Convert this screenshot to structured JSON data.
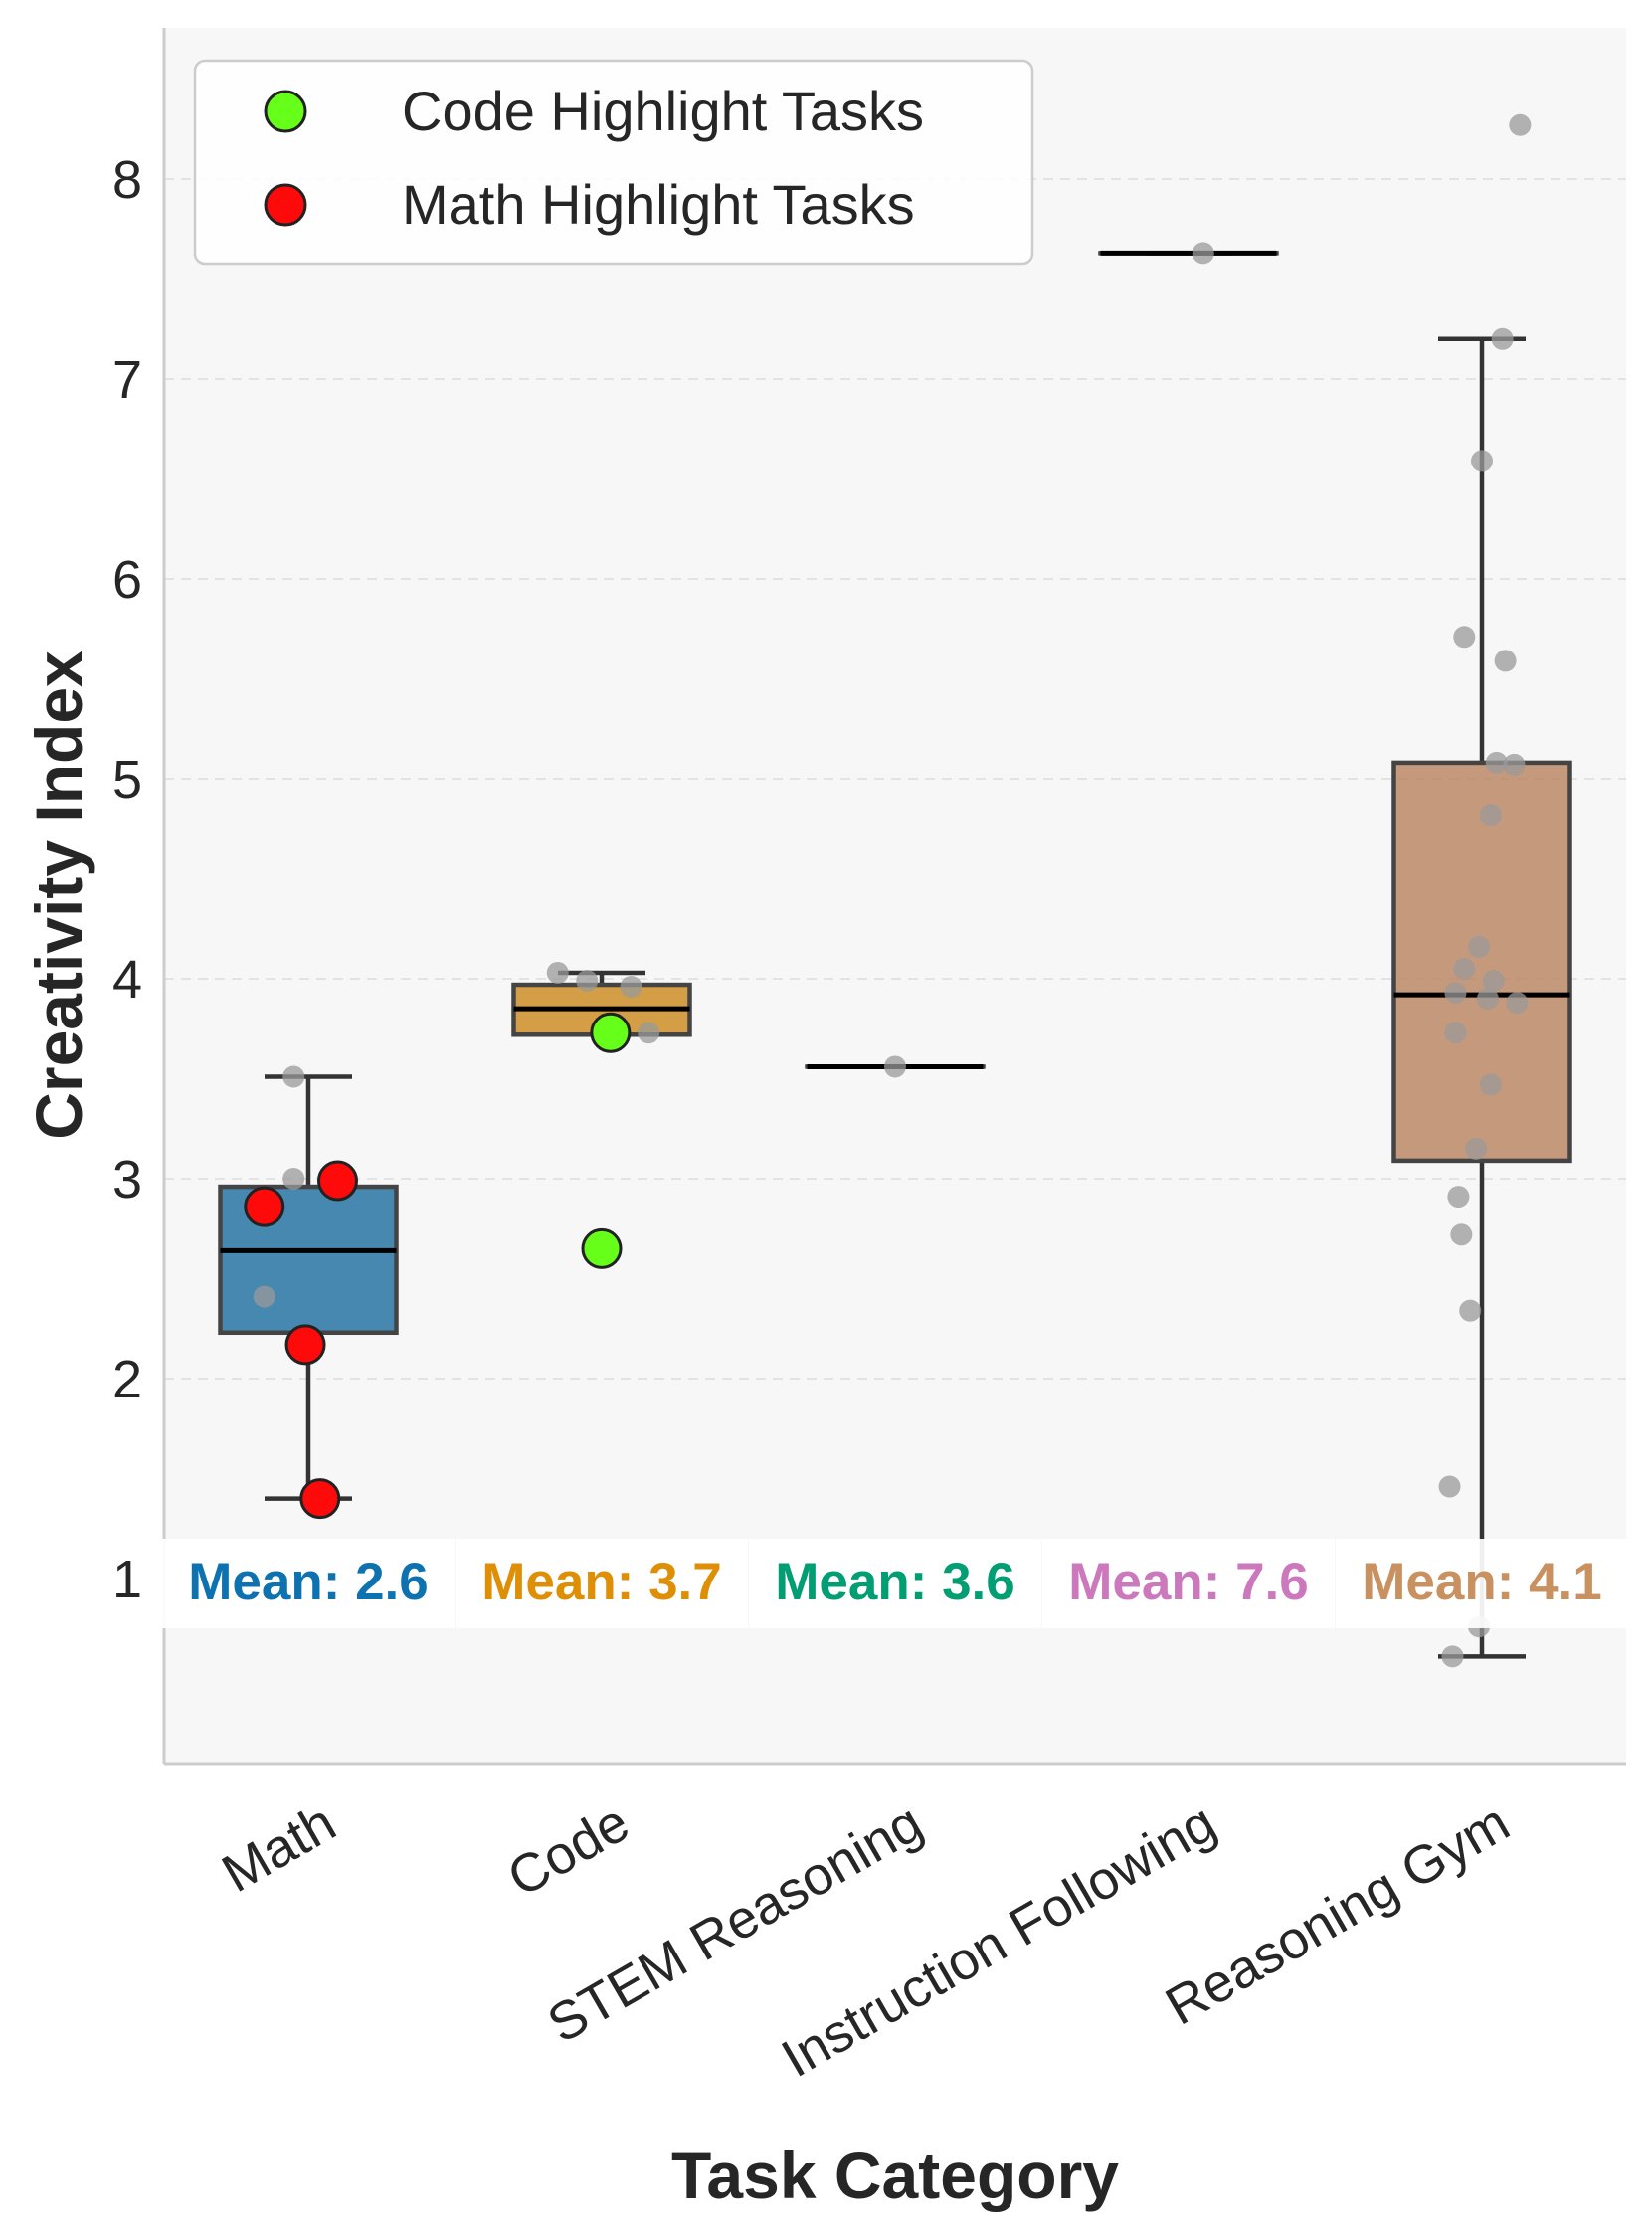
{
  "chart_data": {
    "type": "box",
    "title": "",
    "xlabel": "Task Category",
    "ylabel": "Creativity Index",
    "ylim": [
      0.2,
      8.75
    ],
    "yticks": [
      1,
      2,
      3,
      4,
      5,
      6,
      7,
      8
    ],
    "grid": "y-dashed",
    "legend_position": "top-left",
    "categories": [
      "Math",
      "Code",
      "STEM Reasoning",
      "Instruction Following",
      "Reasoning Gym"
    ],
    "colors": [
      "#1f6f9f",
      "#cc8a1e",
      "#1a9e77",
      "#d17fc0",
      "#b98460"
    ],
    "mean_colors": [
      "#0f72b0",
      "#de8f05",
      "#029e73",
      "#cc78bc",
      "#c8915f"
    ],
    "boxes": [
      {
        "category": "Math",
        "q1": 2.23,
        "median": 2.64,
        "q3": 2.96,
        "whisker_low": 1.4,
        "whisker_high": 3.51
      },
      {
        "category": "Code",
        "q1": 3.72,
        "median": 3.85,
        "q3": 3.97,
        "whisker_low": 3.72,
        "whisker_high": 4.03
      },
      {
        "category": "STEM Reasoning",
        "q1": 3.56,
        "median": 3.56,
        "q3": 3.56,
        "whisker_low": 3.56,
        "whisker_high": 3.56
      },
      {
        "category": "Instruction Following",
        "q1": 7.63,
        "median": 7.63,
        "q3": 7.63,
        "whisker_low": 7.63,
        "whisker_high": 7.63
      },
      {
        "category": "Reasoning Gym",
        "q1": 3.09,
        "median": 3.92,
        "q3": 5.08,
        "whisker_low": 0.61,
        "whisker_high": 7.2
      }
    ],
    "points": [
      {
        "category": "Math",
        "values": [
          3.51,
          3.0,
          2.41,
          2.86,
          2.99,
          2.17,
          1.4
        ],
        "jitter": [
          -0.05,
          -0.05,
          -0.15,
          -0.15,
          0.1,
          -0.01,
          0.04
        ]
      },
      {
        "category": "Code",
        "values": [
          4.03,
          3.99,
          3.96,
          3.73,
          3.72
        ],
        "jitter": [
          -0.15,
          -0.05,
          0.1,
          0.16,
          0.03
        ]
      },
      {
        "category": "STEM Reasoning",
        "values": [
          3.56
        ],
        "jitter": [
          0.0
        ]
      },
      {
        "category": "Instruction Following",
        "values": [
          7.63
        ],
        "jitter": [
          0.05
        ]
      },
      {
        "category": "Reasoning Gym",
        "values": [
          8.27,
          7.2,
          6.59,
          5.71,
          5.59,
          5.08,
          5.07,
          4.82,
          4.16,
          4.05,
          3.99,
          3.93,
          3.9,
          3.88,
          3.73,
          3.47,
          3.15,
          2.91,
          2.72,
          2.34,
          1.46,
          0.76,
          0.61
        ],
        "jitter": [
          0.13,
          0.07,
          0.0,
          -0.06,
          0.08,
          0.05,
          0.11,
          0.03,
          -0.01,
          -0.06,
          0.04,
          -0.09,
          0.02,
          0.12,
          -0.09,
          0.03,
          -0.02,
          -0.08,
          -0.07,
          -0.04,
          -0.11,
          -0.01,
          -0.1
        ]
      }
    ],
    "highlights": [
      {
        "series": "Math Highlight Tasks",
        "color": "#ff0a0a",
        "points": [
          {
            "category": "Math",
            "value": 2.86,
            "jitter": -0.15
          },
          {
            "category": "Math",
            "value": 2.99,
            "jitter": 0.1
          },
          {
            "category": "Math",
            "value": 2.17,
            "jitter": -0.01
          },
          {
            "category": "Math",
            "value": 1.4,
            "jitter": 0.04
          }
        ]
      },
      {
        "series": "Code Highlight Tasks",
        "color": "#66ff1a",
        "points": [
          {
            "category": "Code",
            "value": 3.73,
            "jitter": 0.03
          },
          {
            "category": "Code",
            "value": 2.65,
            "jitter": 0.0
          }
        ]
      }
    ],
    "legend": [
      {
        "label": "Code Highlight Tasks",
        "color": "#66ff1a"
      },
      {
        "label": "Math Highlight Tasks",
        "color": "#ff0a0a"
      }
    ],
    "mean_labels": [
      "Mean: 2.6",
      "Mean: 3.7",
      "Mean: 3.6",
      "Mean: 7.6",
      "Mean: 4.1"
    ]
  }
}
